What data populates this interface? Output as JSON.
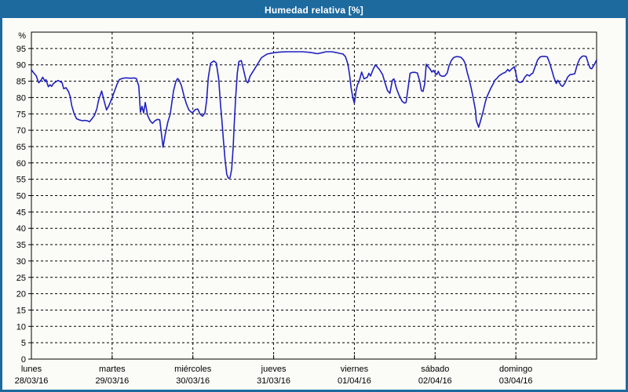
{
  "window": {
    "titlebar_color": "#1d6a9e",
    "border_color": "#1d6a9e",
    "background_color": "#fbfcf8"
  },
  "chart_data": {
    "type": "line",
    "title": "Humedad relativa [%]",
    "unit_label": "%",
    "xlabel": "",
    "ylabel": "%",
    "ylim": [
      0,
      100
    ],
    "y_ticks": [
      0,
      5,
      10,
      15,
      20,
      25,
      30,
      35,
      40,
      45,
      50,
      55,
      60,
      65,
      70,
      75,
      80,
      85,
      90,
      95
    ],
    "grid": "dashed",
    "legend": "none",
    "line_color": "#2020c0",
    "grid_color": "#000000",
    "x_days": [
      {
        "name": "lunes",
        "date": "28/03/16"
      },
      {
        "name": "martes",
        "date": "29/03/16"
      },
      {
        "name": "miércoles",
        "date": "30/03/16"
      },
      {
        "name": "jueves",
        "date": "31/03/16"
      },
      {
        "name": "viernes",
        "date": "01/04/16"
      },
      {
        "name": "sábado",
        "date": "02/04/16"
      },
      {
        "name": "domingo",
        "date": "03/04/16"
      }
    ],
    "series": [
      {
        "name": "Humedad relativa",
        "x_unit": "days_from_start",
        "points": [
          [
            0.0,
            88.5
          ],
          [
            0.03,
            87.5
          ],
          [
            0.06,
            86.6
          ],
          [
            0.09,
            84.5
          ],
          [
            0.12,
            85.3
          ],
          [
            0.14,
            86.2
          ],
          [
            0.17,
            84.9
          ],
          [
            0.18,
            85.5
          ],
          [
            0.21,
            83.3
          ],
          [
            0.23,
            83.9
          ],
          [
            0.25,
            83.4
          ],
          [
            0.27,
            84.2
          ],
          [
            0.3,
            84.8
          ],
          [
            0.33,
            85.2
          ],
          [
            0.35,
            85.0
          ],
          [
            0.38,
            84.5
          ],
          [
            0.4,
            82.7
          ],
          [
            0.43,
            83.0
          ],
          [
            0.46,
            81.8
          ],
          [
            0.48,
            80.3
          ],
          [
            0.5,
            77.5
          ],
          [
            0.53,
            75.0
          ],
          [
            0.56,
            73.5
          ],
          [
            0.59,
            73.2
          ],
          [
            0.63,
            72.9
          ],
          [
            0.66,
            73.0
          ],
          [
            0.69,
            72.9
          ],
          [
            0.72,
            72.6
          ],
          [
            0.75,
            73.5
          ],
          [
            0.78,
            74.5
          ],
          [
            0.81,
            76.5
          ],
          [
            0.83,
            79.0
          ],
          [
            0.87,
            82.0
          ],
          [
            0.9,
            79.0
          ],
          [
            0.93,
            76.2
          ],
          [
            0.96,
            77.5
          ],
          [
            1.0,
            80.0
          ],
          [
            1.03,
            82.0
          ],
          [
            1.06,
            84.0
          ],
          [
            1.09,
            85.5
          ],
          [
            1.12,
            85.8
          ],
          [
            1.16,
            86.0
          ],
          [
            1.19,
            86.0
          ],
          [
            1.23,
            85.9
          ],
          [
            1.27,
            86.0
          ],
          [
            1.3,
            85.8
          ],
          [
            1.33,
            83.5
          ],
          [
            1.35,
            75.5
          ],
          [
            1.37,
            77.3
          ],
          [
            1.39,
            75.3
          ],
          [
            1.41,
            78.5
          ],
          [
            1.44,
            74.5
          ],
          [
            1.47,
            72.9
          ],
          [
            1.5,
            72.1
          ],
          [
            1.53,
            72.9
          ],
          [
            1.56,
            73.3
          ],
          [
            1.59,
            73.2
          ],
          [
            1.63,
            64.8
          ],
          [
            1.66,
            69.0
          ],
          [
            1.69,
            72.5
          ],
          [
            1.72,
            75.0
          ],
          [
            1.76,
            82.0
          ],
          [
            1.79,
            85.0
          ],
          [
            1.81,
            85.8
          ],
          [
            1.83,
            85.3
          ],
          [
            1.86,
            83.5
          ],
          [
            1.89,
            80.5
          ],
          [
            1.92,
            78.0
          ],
          [
            1.95,
            76.2
          ],
          [
            1.98,
            75.5
          ],
          [
            2.0,
            75.5
          ],
          [
            2.03,
            76.3
          ],
          [
            2.06,
            76.5
          ],
          [
            2.09,
            74.9
          ],
          [
            2.12,
            74.3
          ],
          [
            2.15,
            75.3
          ],
          [
            2.17,
            79.0
          ],
          [
            2.19,
            86.0
          ],
          [
            2.22,
            90.5
          ],
          [
            2.26,
            91.2
          ],
          [
            2.29,
            90.6
          ],
          [
            2.32,
            85.7
          ],
          [
            2.34,
            78.5
          ],
          [
            2.36,
            72.9
          ],
          [
            2.38,
            66.4
          ],
          [
            2.4,
            60.5
          ],
          [
            2.42,
            56.5
          ],
          [
            2.44,
            55.3
          ],
          [
            2.46,
            55.5
          ],
          [
            2.48,
            58.0
          ],
          [
            2.5,
            65.0
          ],
          [
            2.51,
            71.0
          ],
          [
            2.53,
            80.0
          ],
          [
            2.55,
            87.5
          ],
          [
            2.57,
            91.0
          ],
          [
            2.6,
            91.3
          ],
          [
            2.63,
            88.2
          ],
          [
            2.66,
            85.0
          ],
          [
            2.68,
            84.5
          ],
          [
            2.71,
            86.6
          ],
          [
            2.75,
            88.2
          ],
          [
            2.8,
            90.2
          ],
          [
            2.85,
            92.2
          ],
          [
            2.92,
            93.3
          ],
          [
            3.0,
            93.7
          ],
          [
            3.07,
            93.9
          ],
          [
            3.17,
            94.0
          ],
          [
            3.26,
            94.0
          ],
          [
            3.36,
            94.0
          ],
          [
            3.46,
            93.8
          ],
          [
            3.5,
            93.6
          ],
          [
            3.54,
            93.4
          ],
          [
            3.58,
            93.6
          ],
          [
            3.65,
            94.0
          ],
          [
            3.72,
            94.0
          ],
          [
            3.77,
            93.8
          ],
          [
            3.82,
            93.5
          ],
          [
            3.86,
            93.3
          ],
          [
            3.89,
            92.5
          ],
          [
            3.92,
            90.2
          ],
          [
            3.94,
            87.0
          ],
          [
            3.96,
            82.9
          ],
          [
            3.98,
            80.0
          ],
          [
            4.0,
            78.3
          ],
          [
            4.02,
            82.0
          ],
          [
            4.04,
            84.0
          ],
          [
            4.06,
            85.0
          ],
          [
            4.09,
            87.8
          ],
          [
            4.12,
            85.7
          ],
          [
            4.16,
            86.2
          ],
          [
            4.18,
            87.4
          ],
          [
            4.2,
            86.6
          ],
          [
            4.23,
            88.5
          ],
          [
            4.26,
            90.0
          ],
          [
            4.31,
            88.6
          ],
          [
            4.35,
            87.0
          ],
          [
            4.38,
            84.5
          ],
          [
            4.41,
            82.1
          ],
          [
            4.44,
            81.3
          ],
          [
            4.47,
            85.3
          ],
          [
            4.49,
            85.7
          ],
          [
            4.52,
            82.9
          ],
          [
            4.55,
            80.9
          ],
          [
            4.59,
            78.9
          ],
          [
            4.62,
            78.3
          ],
          [
            4.64,
            78.5
          ],
          [
            4.66,
            82.0
          ],
          [
            4.69,
            87.4
          ],
          [
            4.72,
            87.7
          ],
          [
            4.75,
            87.7
          ],
          [
            4.78,
            87.5
          ],
          [
            4.81,
            85.0
          ],
          [
            4.83,
            82.1
          ],
          [
            4.85,
            81.9
          ],
          [
            4.87,
            84.0
          ],
          [
            4.89,
            90.2
          ],
          [
            4.91,
            89.5
          ],
          [
            4.93,
            89.0
          ],
          [
            4.96,
            87.8
          ],
          [
            4.98,
            88.3
          ],
          [
            5.0,
            87.5
          ],
          [
            5.02,
            87.0
          ],
          [
            5.04,
            88.0
          ],
          [
            5.06,
            86.8
          ],
          [
            5.09,
            86.5
          ],
          [
            5.12,
            86.6
          ],
          [
            5.15,
            87.5
          ],
          [
            5.17,
            89.5
          ],
          [
            5.2,
            91.3
          ],
          [
            5.23,
            92.2
          ],
          [
            5.26,
            92.5
          ],
          [
            5.29,
            92.5
          ],
          [
            5.32,
            92.3
          ],
          [
            5.35,
            91.5
          ],
          [
            5.37,
            90.6
          ],
          [
            5.4,
            87.5
          ],
          [
            5.42,
            85.7
          ],
          [
            5.45,
            82.5
          ],
          [
            5.47,
            80.1
          ],
          [
            5.5,
            76.1
          ],
          [
            5.51,
            73.0
          ],
          [
            5.54,
            70.9
          ],
          [
            5.57,
            73.5
          ],
          [
            5.59,
            75.3
          ],
          [
            5.62,
            78.5
          ],
          [
            5.64,
            80.1
          ],
          [
            5.67,
            81.8
          ],
          [
            5.69,
            82.9
          ],
          [
            5.72,
            84.2
          ],
          [
            5.74,
            85.3
          ],
          [
            5.77,
            86.0
          ],
          [
            5.79,
            86.6
          ],
          [
            5.82,
            87.1
          ],
          [
            5.84,
            87.4
          ],
          [
            5.87,
            87.7
          ],
          [
            5.9,
            88.6
          ],
          [
            5.92,
            88.0
          ],
          [
            5.95,
            88.8
          ],
          [
            5.98,
            89.4
          ],
          [
            6.0,
            87.5
          ],
          [
            6.02,
            85.0
          ],
          [
            6.05,
            84.6
          ],
          [
            6.08,
            84.8
          ],
          [
            6.11,
            86.2
          ],
          [
            6.14,
            87.0
          ],
          [
            6.17,
            86.6
          ],
          [
            6.19,
            87.2
          ],
          [
            6.21,
            87.4
          ],
          [
            6.24,
            89.5
          ],
          [
            6.27,
            91.5
          ],
          [
            6.3,
            92.4
          ],
          [
            6.33,
            92.6
          ],
          [
            6.36,
            92.6
          ],
          [
            6.39,
            92.4
          ],
          [
            6.42,
            90.5
          ],
          [
            6.45,
            88.0
          ],
          [
            6.47,
            86.2
          ],
          [
            6.5,
            84.3
          ],
          [
            6.52,
            85.3
          ],
          [
            6.54,
            84.5
          ],
          [
            6.56,
            83.7
          ],
          [
            6.58,
            83.4
          ],
          [
            6.61,
            84.5
          ],
          [
            6.64,
            86.2
          ],
          [
            6.67,
            87.0
          ],
          [
            6.7,
            87.1
          ],
          [
            6.73,
            87.3
          ],
          [
            6.76,
            90.0
          ],
          [
            6.79,
            91.8
          ],
          [
            6.82,
            92.6
          ],
          [
            6.84,
            92.7
          ],
          [
            6.87,
            92.6
          ],
          [
            6.9,
            90.2
          ],
          [
            6.92,
            89.0
          ],
          [
            6.94,
            88.8
          ],
          [
            6.97,
            90.0
          ],
          [
            7.0,
            91.5
          ]
        ]
      }
    ]
  }
}
